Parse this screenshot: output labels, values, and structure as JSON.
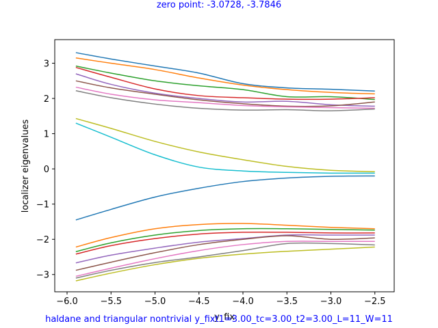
{
  "chart_data": {
    "type": "line",
    "title": "zero point: -3.0728, -3.7846",
    "xlabel": "y_fix",
    "ylabel": "localizer eigenvalues",
    "footer": "haldane and triangular nontrivial y_fixt1=3.00_tc=3.00_t2=3.00_L=11_W=11",
    "xlim": [
      -6.14,
      -2.28
    ],
    "ylim": [
      -3.49,
      3.67
    ],
    "xticks": [
      -6.0,
      -5.5,
      -5.0,
      -4.5,
      -4.0,
      -3.5,
      -3.0,
      -2.5
    ],
    "yticks": [
      -3,
      -2,
      -1,
      0,
      1,
      2,
      3
    ],
    "grid": false,
    "x": [
      -5.9,
      -5.5,
      -5.0,
      -4.5,
      -4.0,
      -3.5,
      -3.0,
      -2.5
    ],
    "series": [
      {
        "color": "#1f77b4",
        "values": [
          3.3,
          3.12,
          2.92,
          2.72,
          2.42,
          2.3,
          2.26,
          2.21
        ]
      },
      {
        "color": "#ff7f0e",
        "values": [
          3.15,
          3.0,
          2.82,
          2.58,
          2.38,
          2.25,
          2.17,
          2.13
        ]
      },
      {
        "color": "#2ca02c",
        "values": [
          2.92,
          2.72,
          2.5,
          2.36,
          2.25,
          2.05,
          2.05,
          1.97
        ]
      },
      {
        "color": "#d62728",
        "values": [
          2.88,
          2.6,
          2.27,
          2.08,
          2.02,
          1.98,
          1.98,
          2.02
        ]
      },
      {
        "color": "#9467bd",
        "values": [
          2.7,
          2.4,
          2.15,
          2.0,
          1.9,
          1.92,
          1.82,
          1.78
        ]
      },
      {
        "color": "#8c564b",
        "values": [
          2.5,
          2.3,
          2.12,
          1.96,
          1.85,
          1.78,
          1.79,
          1.9
        ]
      },
      {
        "color": "#e377c2",
        "values": [
          2.32,
          2.12,
          1.96,
          1.88,
          1.8,
          1.76,
          1.74,
          1.72
        ]
      },
      {
        "color": "#7f7f7f",
        "values": [
          2.22,
          2.02,
          1.84,
          1.72,
          1.67,
          1.68,
          1.65,
          1.7
        ]
      },
      {
        "color": "#bcbd22",
        "values": [
          1.43,
          1.15,
          0.78,
          0.48,
          0.26,
          0.07,
          -0.04,
          -0.08
        ]
      },
      {
        "color": "#17becf",
        "values": [
          1.3,
          0.9,
          0.4,
          0.05,
          -0.06,
          -0.1,
          -0.12,
          -0.12
        ]
      },
      {
        "color": "#1f77b4",
        "values": [
          -1.45,
          -1.15,
          -0.8,
          -0.55,
          -0.36,
          -0.26,
          -0.21,
          -0.2
        ]
      },
      {
        "color": "#ff7f0e",
        "values": [
          -2.22,
          -1.95,
          -1.7,
          -1.58,
          -1.55,
          -1.6,
          -1.66,
          -1.7
        ]
      },
      {
        "color": "#2ca02c",
        "values": [
          -2.35,
          -2.1,
          -1.88,
          -1.75,
          -1.7,
          -1.7,
          -1.72,
          -1.74
        ]
      },
      {
        "color": "#d62728",
        "values": [
          -2.42,
          -2.18,
          -1.98,
          -1.85,
          -1.8,
          -1.8,
          -1.82,
          -1.82
        ]
      },
      {
        "color": "#9467bd",
        "values": [
          -2.67,
          -2.45,
          -2.25,
          -2.08,
          -1.98,
          -1.88,
          -1.88,
          -1.88
        ]
      },
      {
        "color": "#8c564b",
        "values": [
          -2.88,
          -2.65,
          -2.38,
          -2.15,
          -2.0,
          -1.9,
          -2.0,
          -1.96
        ]
      },
      {
        "color": "#e377c2",
        "values": [
          -3.05,
          -2.82,
          -2.55,
          -2.32,
          -2.15,
          -2.06,
          -2.06,
          -2.06
        ]
      },
      {
        "color": "#7f7f7f",
        "values": [
          -3.1,
          -2.88,
          -2.66,
          -2.5,
          -2.32,
          -2.12,
          -2.12,
          -2.16
        ]
      },
      {
        "color": "#bcbd22",
        "values": [
          -3.18,
          -2.96,
          -2.72,
          -2.54,
          -2.42,
          -2.34,
          -2.28,
          -2.22
        ]
      }
    ]
  }
}
